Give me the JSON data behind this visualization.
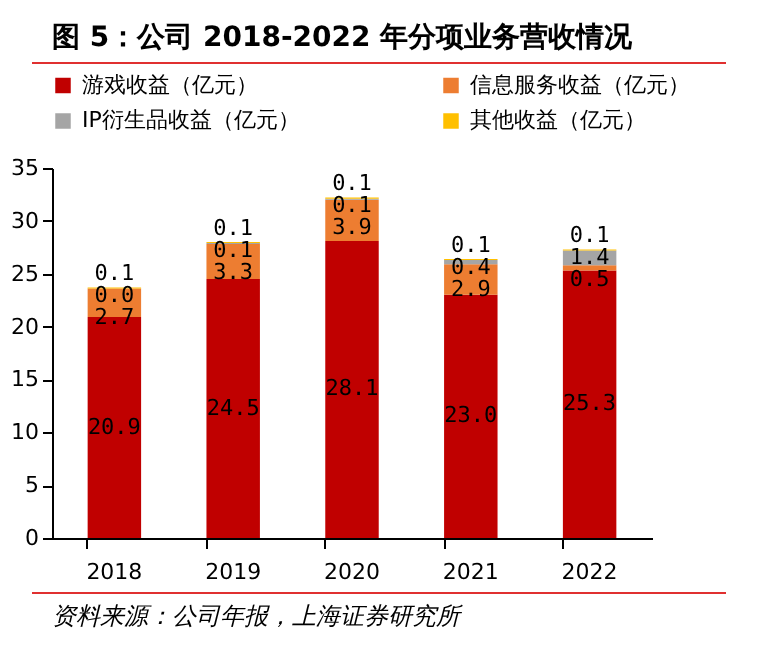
{
  "chart_data": {
    "type": "bar",
    "title": "图 5：公司 2018-2022 年分项业务营收情况",
    "categories": [
      "2018",
      "2019",
      "2020",
      "2021",
      "2022"
    ],
    "series": [
      {
        "name": "游戏收益（亿元）",
        "color": "#c00000",
        "values": [
          20.9,
          24.5,
          28.1,
          23.0,
          25.3
        ],
        "value_labels": [
          "20.9",
          "24.5",
          "28.1",
          "23.0",
          "25.3"
        ]
      },
      {
        "name": "信息服务收益（亿元）",
        "color": "#ed7d31",
        "values": [
          2.7,
          3.3,
          3.9,
          2.9,
          0.5
        ],
        "value_labels": [
          "2.7",
          "3.3",
          "3.9",
          "2.9",
          "0.5"
        ]
      },
      {
        "name": "IP衍生品收益（亿元）",
        "color": "#a5a5a5",
        "values": [
          0.0,
          0.1,
          0.1,
          0.4,
          1.4
        ],
        "value_labels": [
          "0.0",
          "0.1",
          "0.1",
          "0.4",
          "1.4"
        ]
      },
      {
        "name": "其他收益（亿元）",
        "color": "#ffc000",
        "values": [
          0.1,
          0.1,
          0.1,
          0.1,
          0.1
        ],
        "value_labels": [
          "0.1",
          "0.1",
          "0.1",
          "0.1",
          "0.1"
        ]
      }
    ],
    "stacked": true,
    "data_labels": true,
    "ylim": [
      0,
      35
    ],
    "yticks": [
      0,
      5,
      10,
      15,
      20,
      25,
      30,
      35
    ],
    "grid": false,
    "legend": "top",
    "annotations": [
      "资料来源：公司年报，上海证券研究所"
    ]
  }
}
